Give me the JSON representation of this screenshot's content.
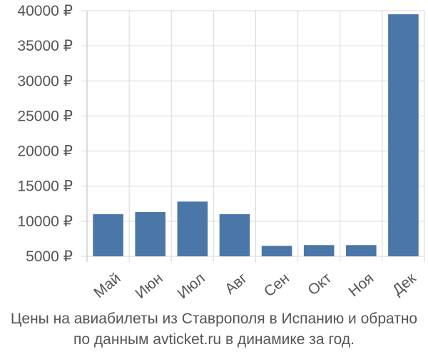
{
  "chart_data": {
    "type": "bar",
    "categories": [
      "Май",
      "Июн",
      "Июл",
      "Авг",
      "Сен",
      "Окт",
      "Ноя",
      "Дек"
    ],
    "values": [
      11000,
      11300,
      12800,
      11000,
      6500,
      6600,
      6600,
      39500
    ],
    "ylim": [
      5000,
      40000
    ],
    "yticks": [
      5000,
      10000,
      15000,
      20000,
      25000,
      30000,
      35000,
      40000
    ],
    "ytick_labels": [
      "5000 ₽",
      "10000 ₽",
      "15000 ₽",
      "20000 ₽",
      "25000 ₽",
      "30000 ₽",
      "35000 ₽",
      "40000 ₽"
    ],
    "grid": true,
    "caption": [
      "Цены на авиабилеты из Ставрополя в Испанию и обратно",
      "по данным avticket.ru в динамике за год."
    ],
    "colors": {
      "bar": "#4a76a8",
      "grid": "#d9d9d9",
      "axis": "#bbbbbb",
      "text": "#555555"
    }
  }
}
